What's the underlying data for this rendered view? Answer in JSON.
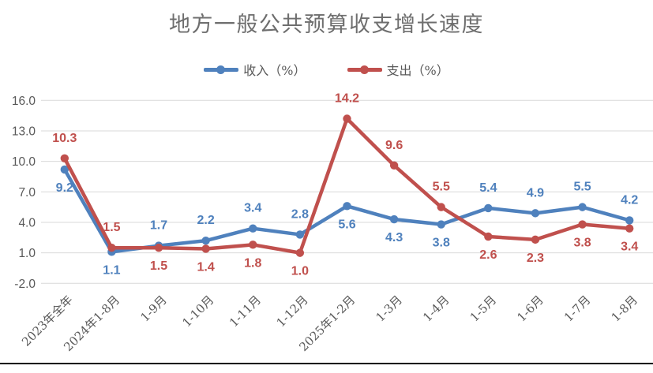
{
  "chart_data": {
    "type": "line",
    "title": "地方一般公共预算收支增长速度",
    "categories": [
      "2023年全年",
      "2024年1-8月",
      "1-9月",
      "1-10月",
      "1-11月",
      "1-12月",
      "2025年1-2月",
      "1-3月",
      "1-4月",
      "1-5月",
      "1-6月",
      "1-7月",
      "1-8月"
    ],
    "series": [
      {
        "name": "收入（%）",
        "semantic": "revenue",
        "color": "#4F81BD",
        "values": [
          9.2,
          1.1,
          1.7,
          2.2,
          3.4,
          2.8,
          5.6,
          4.3,
          3.8,
          5.4,
          4.9,
          5.5,
          4.2
        ],
        "label_positions": [
          "below",
          "below",
          "above",
          "above",
          "above",
          "above",
          "below",
          "below",
          "below",
          "above",
          "above",
          "above",
          "above"
        ]
      },
      {
        "name": "支出（%）",
        "semantic": "expenditure",
        "color": "#C0504D",
        "values": [
          10.3,
          1.5,
          1.5,
          1.4,
          1.8,
          1.0,
          14.2,
          9.6,
          5.5,
          2.6,
          2.3,
          3.8,
          3.4
        ],
        "label_positions": [
          "above",
          "above",
          "below",
          "below",
          "below",
          "below",
          "above",
          "above",
          "above",
          "below",
          "below",
          "below",
          "below"
        ]
      }
    ],
    "y_axis": {
      "min": -2.0,
      "max": 16.0,
      "step": 3.0,
      "tick_labels": [
        "16.0",
        "13.0",
        "10.0",
        "7.0",
        "4.0",
        "1.0",
        "-2.0"
      ]
    },
    "x_axis": {
      "label_rotation_deg": 45
    },
    "grid": true,
    "legend_position": "top-center",
    "colors": {
      "grid": "#D9D9D9",
      "axis_text": "#595959",
      "title_text": "#6E6E6E",
      "bottom_rule": "#000000"
    }
  }
}
